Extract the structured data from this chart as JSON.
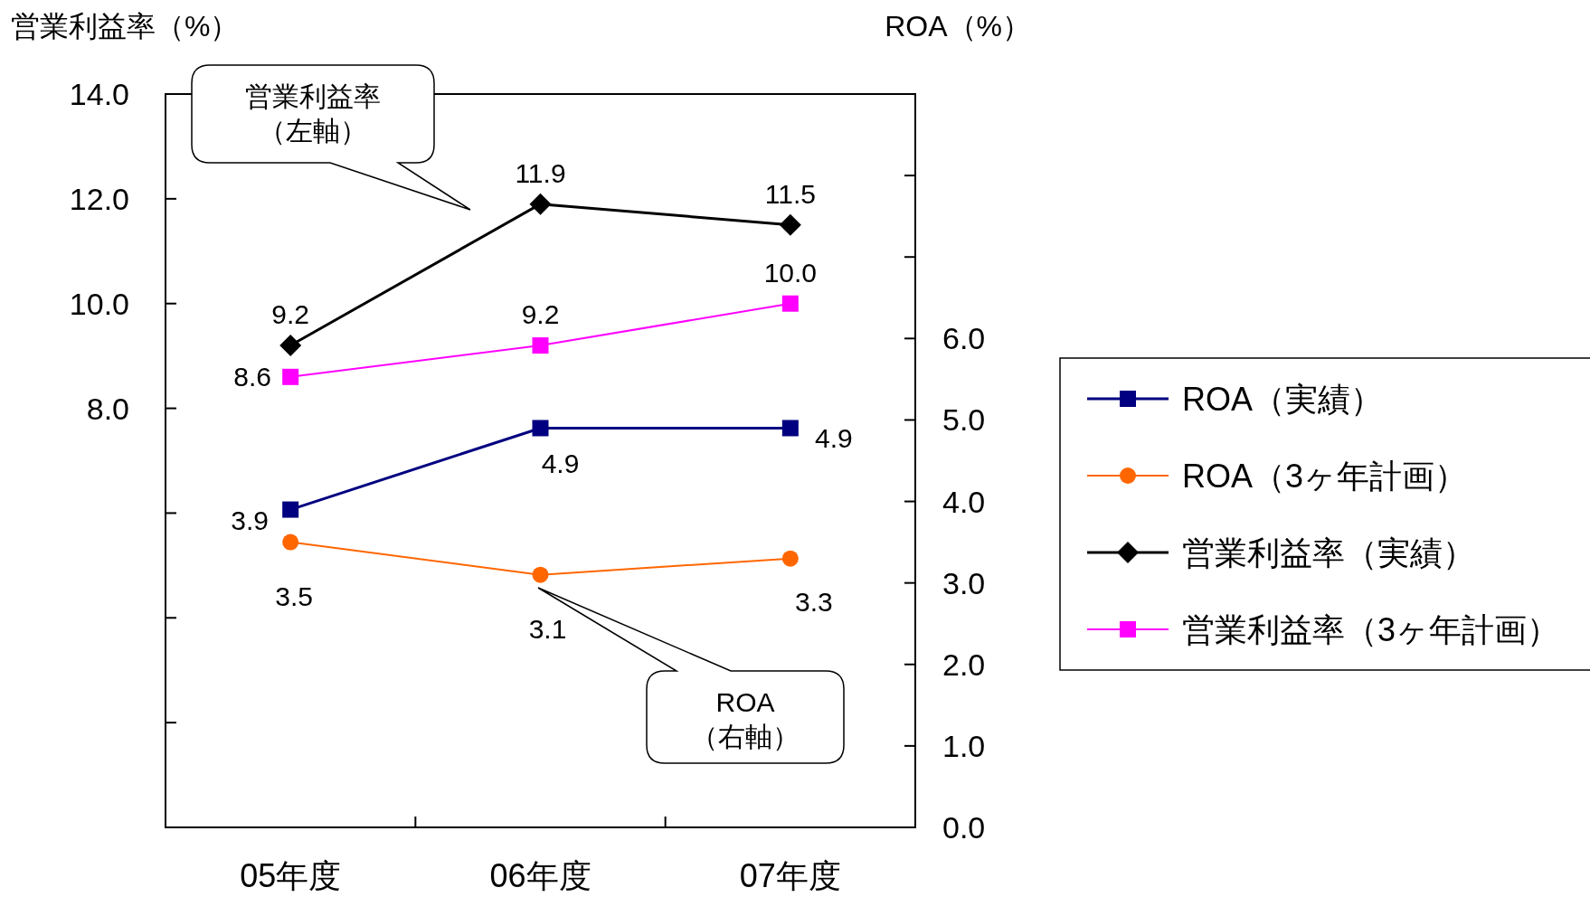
{
  "chart_data": {
    "type": "line",
    "ylabel": "営業利益率（%）",
    "y2label": "ROA（%）",
    "categories": [
      "05年度",
      "06年度",
      "07年度"
    ],
    "ylim": [
      0,
      14
    ],
    "yticks": [
      {
        "value": 0,
        "label": null
      },
      {
        "value": 2,
        "label": null
      },
      {
        "value": 4,
        "label": null
      },
      {
        "value": 6,
        "label": null
      },
      {
        "value": 8,
        "label": "8.0"
      },
      {
        "value": 10,
        "label": "10.0"
      },
      {
        "value": 12,
        "label": "12.0"
      },
      {
        "value": 14,
        "label": "14.0"
      }
    ],
    "y2lim": [
      0,
      9
    ],
    "y2ticks": [
      {
        "value": 0,
        "label": "0.0"
      },
      {
        "value": 1,
        "label": "1.0"
      },
      {
        "value": 2,
        "label": "2.0"
      },
      {
        "value": 3,
        "label": "3.0"
      },
      {
        "value": 4,
        "label": "4.0"
      },
      {
        "value": 5,
        "label": "5.0"
      },
      {
        "value": 6,
        "label": "6.0"
      },
      {
        "value": 7,
        "label": null
      },
      {
        "value": 8,
        "label": null
      },
      {
        "value": 9,
        "label": null
      }
    ],
    "series": [
      {
        "name": "ROA（実績）",
        "color": "#000080",
        "values": [
          3.9,
          4.9,
          4.9
        ],
        "axis": "y2",
        "marker": "square"
      },
      {
        "name": "ROA（3ヶ年計画）",
        "color": "#ff6600",
        "values": [
          3.5,
          3.1,
          3.3
        ],
        "axis": "y2",
        "marker": "circle"
      },
      {
        "name": "営業利益率（実績）",
        "color": "#000000",
        "values": [
          9.2,
          11.9,
          11.5
        ],
        "marker": "diamond"
      },
      {
        "name": "営業利益率（3ヶ年計画）",
        "color": "#ff00ff",
        "values": [
          8.6,
          9.2,
          10.0
        ],
        "value_labels": [
          "8.6",
          "9.2",
          "10.0"
        ],
        "marker": "square"
      }
    ],
    "data_labels": true,
    "grid": false,
    "legend": "right",
    "annotations": [
      "営業利益率",
      "（左軸）",
      "ROA",
      "（右軸）"
    ]
  }
}
